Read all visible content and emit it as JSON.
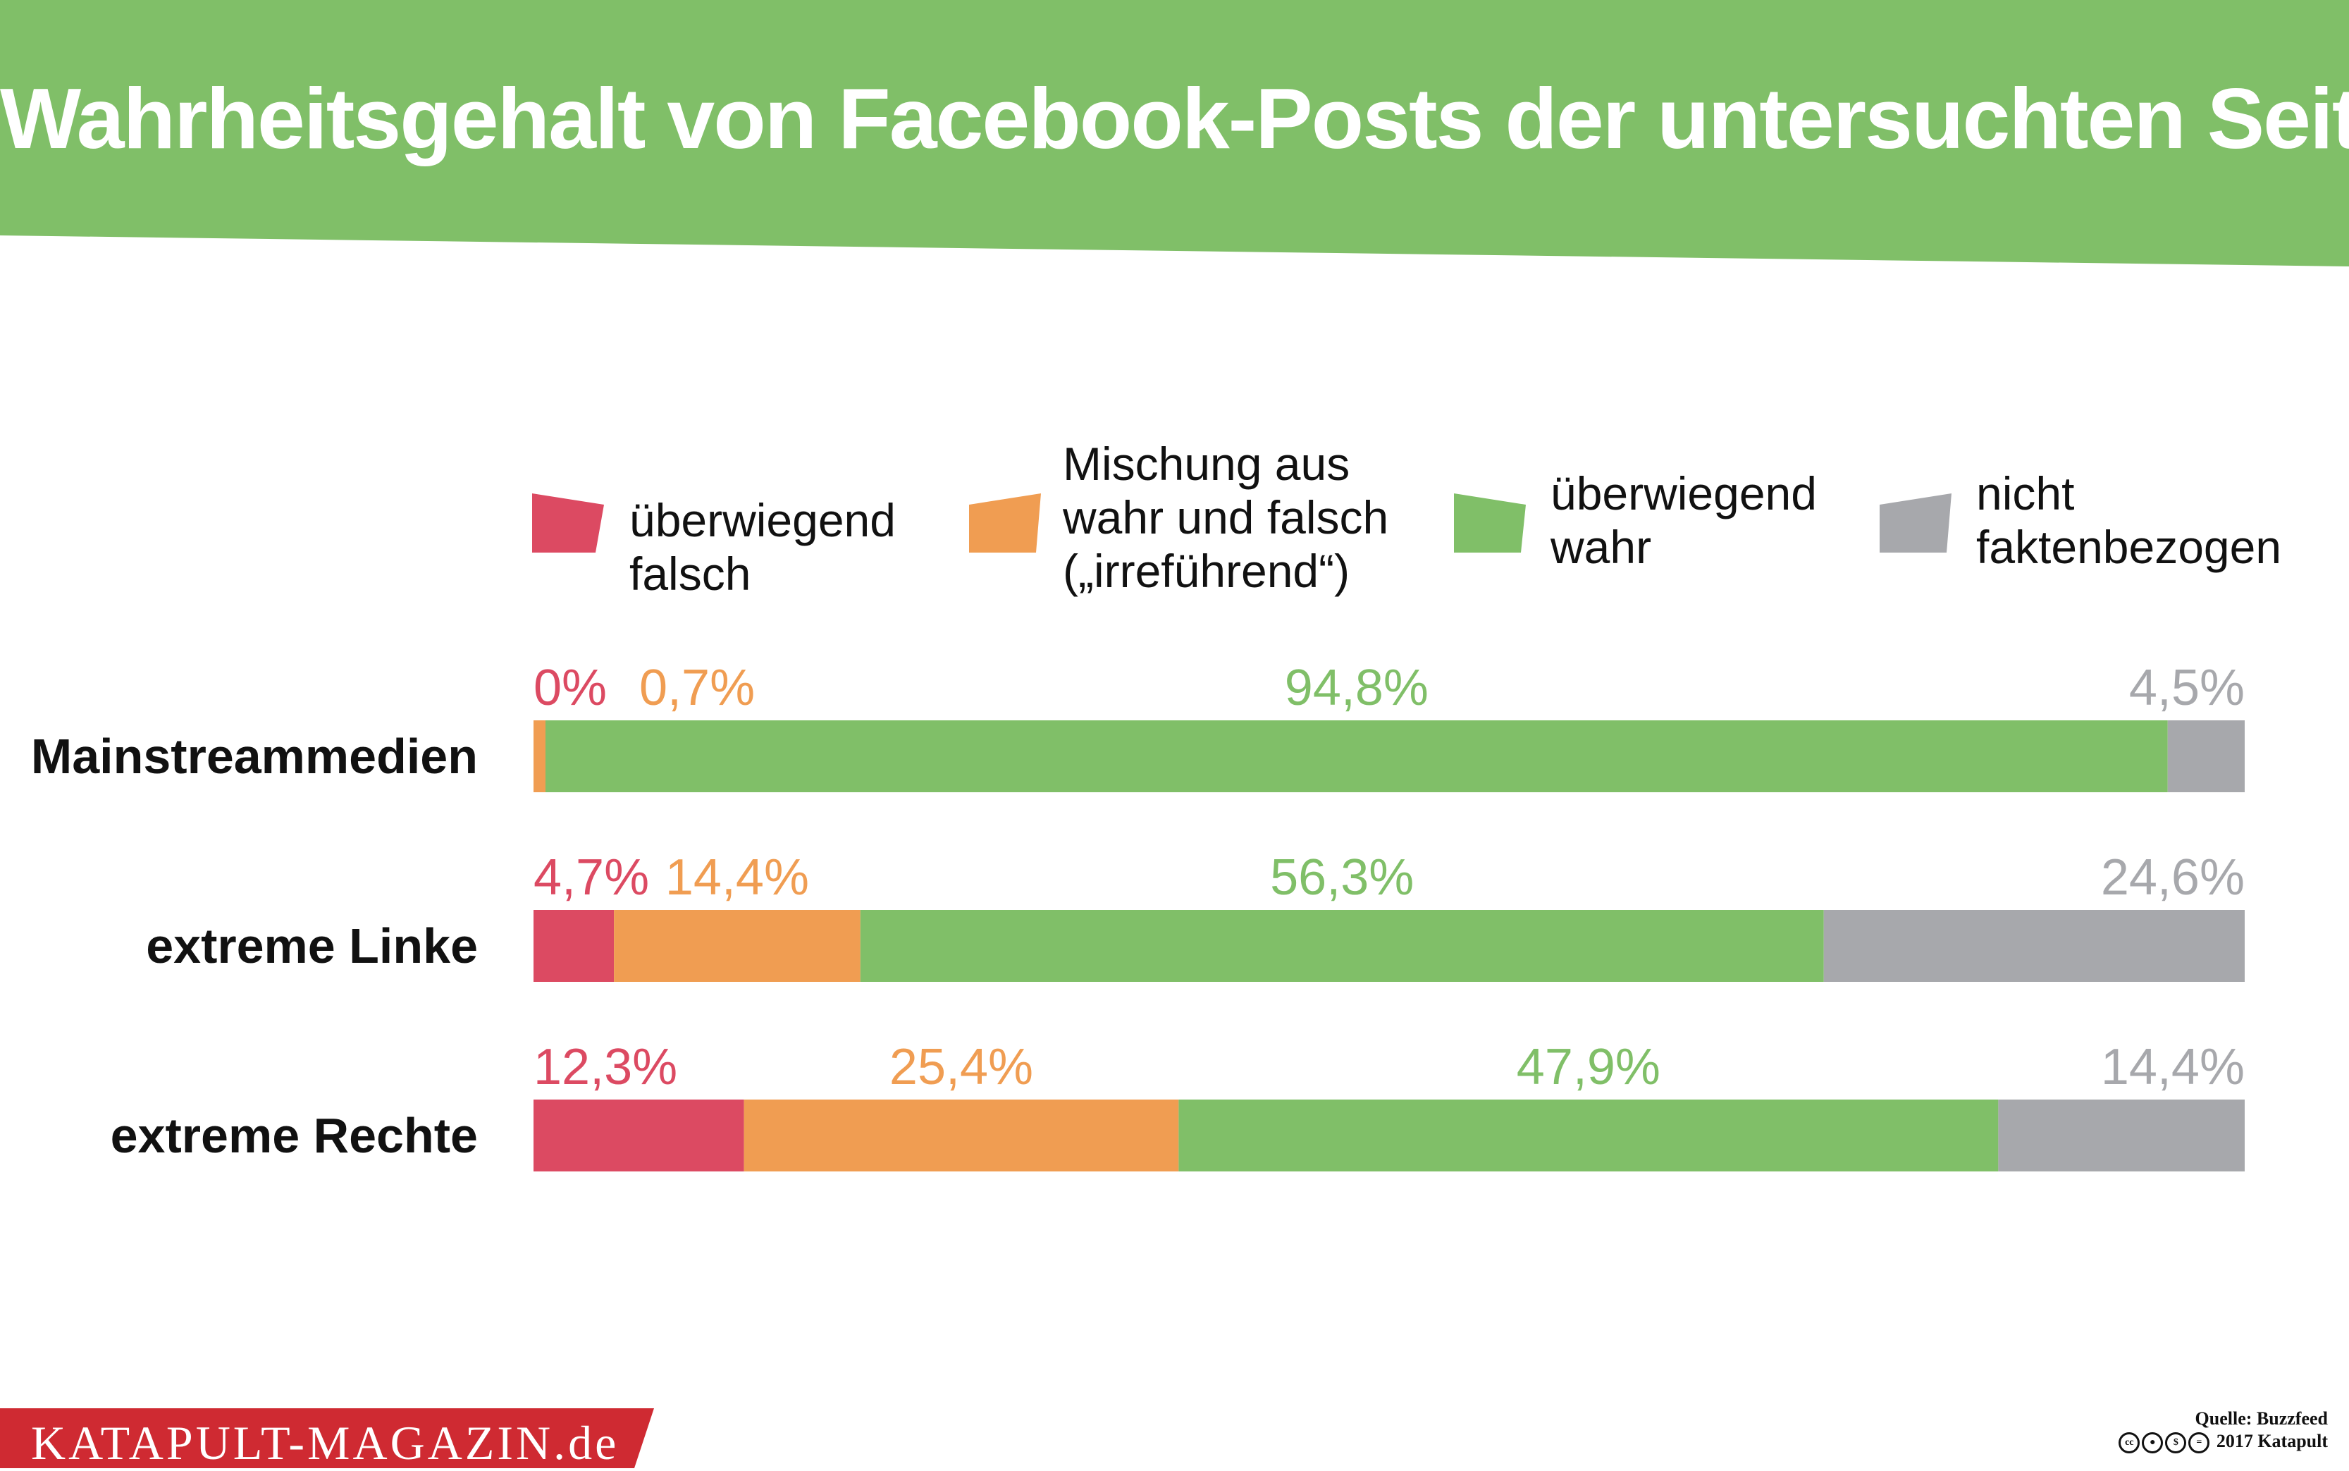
{
  "header": {
    "title": "Wahrheitsgehalt von Facebook-Posts der untersuchten Seiten",
    "color": "#80bf68"
  },
  "legend": [
    {
      "label": "überwiegend\nfalsch",
      "color": "#dc4a62"
    },
    {
      "label": "Mischung aus\nwahr und falsch\n(„irreführend“)",
      "color": "#f09d52"
    },
    {
      "label": "überwiegend\nwahr",
      "color": "#80bf68"
    },
    {
      "label": "nicht\nfaktenbezogen",
      "color": "#a7a8ac"
    }
  ],
  "chart_data": {
    "type": "bar",
    "stacked": true,
    "orientation": "horizontal",
    "categories": [
      "Mainstreammedien",
      "extreme Linke",
      "extreme Rechte"
    ],
    "series": [
      {
        "name": "überwiegend falsch",
        "values": [
          0,
          4.7,
          12.3
        ],
        "labels": [
          "0%",
          "4,7%",
          "12,3%"
        ],
        "color": "#dc4a62"
      },
      {
        "name": "Mischung aus wahr und falsch („irreführend“)",
        "values": [
          0.7,
          14.4,
          25.4
        ],
        "labels": [
          "0,7%",
          "14,4%",
          "25,4%"
        ],
        "color": "#f09d52"
      },
      {
        "name": "überwiegend wahr",
        "values": [
          94.8,
          56.3,
          47.9
        ],
        "labels": [
          "94,8%",
          "56,3%",
          "47,9%"
        ],
        "color": "#80bf68"
      },
      {
        "name": "nicht faktenbezogen",
        "values": [
          4.5,
          24.6,
          14.4
        ],
        "labels": [
          "4,5%",
          "24,6%",
          "14,4%"
        ],
        "color": "#a7a8ac"
      }
    ],
    "unit": "%"
  },
  "footer": {
    "brand": "KATAPULT-MAGAZIN.de",
    "brand_color": "#cf2a32",
    "source": "Quelle: Buzzfeed",
    "license": "2017 Katapult",
    "license_icons": [
      "cc",
      "by",
      "nc",
      "nd"
    ]
  }
}
